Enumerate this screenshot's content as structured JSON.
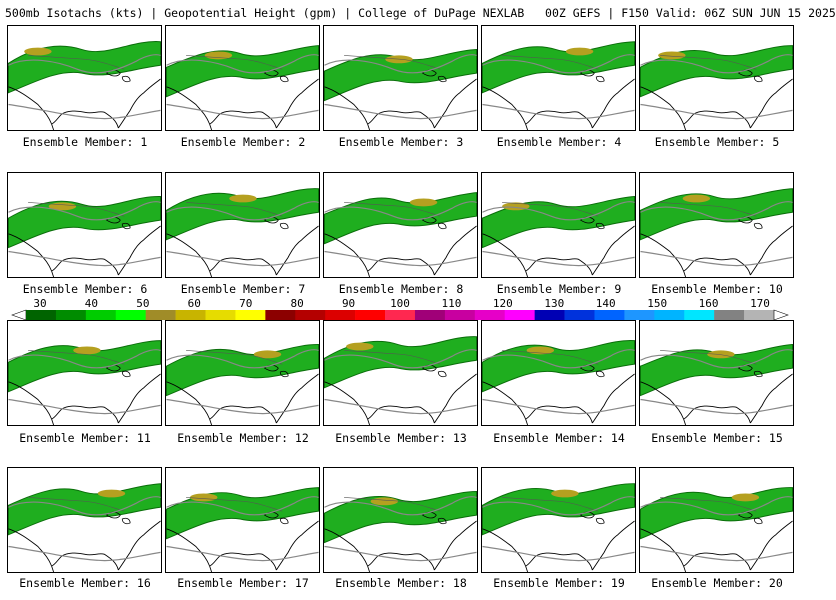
{
  "title": "500mb Isotachs (kts) | Geopotential Height (gpm) | College of DuPage NEXLAB   00Z GEFS | F150 Valid: 06Z SUN JUN 15 2025",
  "colorbar": {
    "ticks": [
      "30",
      "40",
      "50",
      "60",
      "70",
      "80",
      "90",
      "100",
      "110",
      "120",
      "130",
      "140",
      "150",
      "160",
      "170"
    ],
    "colors": [
      "#006400",
      "#008c00",
      "#00cc00",
      "#00ff00",
      "#a08c28",
      "#c8b400",
      "#e6dc00",
      "#ffff00",
      "#8c0000",
      "#b40000",
      "#dc0000",
      "#ff0000",
      "#ff2850",
      "#a00078",
      "#c800a0",
      "#e600c8",
      "#ff00ff",
      "#0000b4",
      "#0032dc",
      "#0064ff",
      "#1e96ff",
      "#00b4ff",
      "#00e6ff",
      "#828282",
      "#b4b4b4"
    ]
  },
  "panels": [
    {
      "label": "Ensemble Member: 1"
    },
    {
      "label": "Ensemble Member: 2"
    },
    {
      "label": "Ensemble Member: 3"
    },
    {
      "label": "Ensemble Member: 4"
    },
    {
      "label": "Ensemble Member: 5"
    },
    {
      "label": "Ensemble Member: 6"
    },
    {
      "label": "Ensemble Member: 7"
    },
    {
      "label": "Ensemble Member: 8"
    },
    {
      "label": "Ensemble Member: 9"
    },
    {
      "label": "Ensemble Member: 10"
    },
    {
      "label": "Ensemble Member: 11"
    },
    {
      "label": "Ensemble Member: 12"
    },
    {
      "label": "Ensemble Member: 13"
    },
    {
      "label": "Ensemble Member: 14"
    },
    {
      "label": "Ensemble Member: 15"
    },
    {
      "label": "Ensemble Member: 16"
    },
    {
      "label": "Ensemble Member: 17"
    },
    {
      "label": "Ensemble Member: 18"
    },
    {
      "label": "Ensemble Member: 19"
    },
    {
      "label": "Ensemble Member: 20"
    }
  ]
}
